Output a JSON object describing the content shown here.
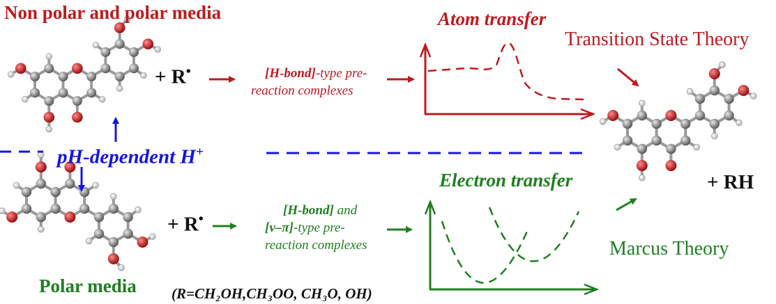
{
  "colors": {
    "red": "#c0191e",
    "green": "#1f7f1f",
    "blue": "#1414e6",
    "carbon": "#8a8a8a",
    "oxygen": "#d8141b",
    "hydrogen": "#f2f2f2"
  },
  "labels": {
    "nonpolar_media": "Non polar and polar media",
    "polar_media": "Polar media",
    "ph_dependent": "pH-dependent H",
    "ph_superscript": "+",
    "radical_plus": "+ R",
    "radical_dot": "•",
    "product_rh": "+ RH",
    "radical_list": "(R=CH₂OH,CH₃OO, CH₃O, OH)",
    "atom_transfer": "Atom transfer",
    "electron_transfer": "Electron transfer",
    "transition_state_theory": "Transition State Theory",
    "marcus_theory": "Marcus Theory",
    "top_complex": {
      "bond_term": "[H-bond]",
      "line1_rest": "-type pre-",
      "line2": "reaction complexes"
    },
    "bottom_complex": {
      "line1_bond": "[H-bond]",
      "line1_rest": " and",
      "line2_bond": "[ν–π]",
      "line2_rest": "-type  pre-",
      "line3": "reaction complexes"
    }
  }
}
